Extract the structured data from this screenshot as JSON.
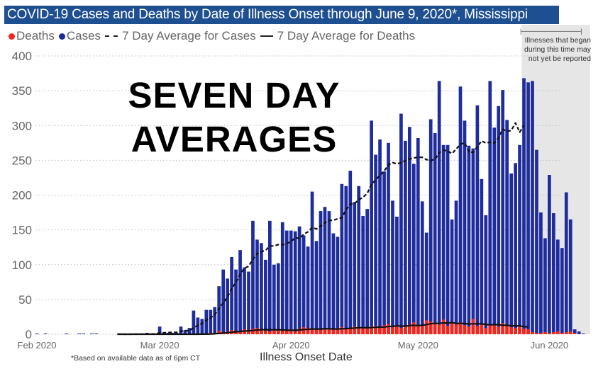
{
  "title": "COVID-19 Cases and Deaths by Date of Illness Onset through June 9, 2020*, Mississippi",
  "legend": [
    {
      "label": "Deaths",
      "marker": "dot",
      "color": "#f2261b"
    },
    {
      "label": "Cases",
      "marker": "dot",
      "color": "#1f2c9c"
    },
    {
      "label": "7 Day Average for Cases",
      "marker": "dashed-line",
      "color": "#222222"
    },
    {
      "label": "7 Day Average for Deaths",
      "marker": "solid-line",
      "color": "#222222"
    }
  ],
  "overlay_text": [
    "SEVEN DAY",
    "AVERAGES"
  ],
  "shade_note": {
    "bracket": "|------------------------------------------|",
    "text": "Illnesses that began during this time may not yet be reported",
    "from_date": "2020-05-26"
  },
  "footnote": "*Based on available data as of 6pm CT",
  "colors": {
    "title_bar": "#1d4f91",
    "cases": "#1f2c9c",
    "deaths": "#f2261b",
    "shade": "#e6e6e6"
  },
  "chart_data": {
    "type": "bar",
    "title": "COVID-19 Cases and Deaths by Date of Illness Onset through June 9, 2020*, Mississippi",
    "xlabel": "Illness Onset Date",
    "ylabel": "",
    "ylim": [
      0,
      400
    ],
    "yticks": [
      0,
      50,
      100,
      150,
      200,
      250,
      300,
      350,
      400
    ],
    "xticks": [
      {
        "date": "2020-02-01",
        "label": "Feb 2020"
      },
      {
        "date": "2020-03-01",
        "label": "Mar 2020"
      },
      {
        "date": "2020-04-01",
        "label": "Apr 2020"
      },
      {
        "date": "2020-05-01",
        "label": "May 2020"
      },
      {
        "date": "2020-06-01",
        "label": "Jun 2020"
      }
    ],
    "grid": true,
    "legend_position": "top-left",
    "date_range": [
      "2020-02-01",
      "2020-06-09"
    ],
    "series": [
      {
        "name": "Cases",
        "kind": "bar",
        "color": "#1f2c9c",
        "values": [
          1,
          0,
          1,
          0,
          0,
          0,
          0,
          1,
          0,
          0,
          1,
          1,
          0,
          1,
          1,
          0,
          0,
          0,
          0,
          0,
          0,
          0,
          0,
          1,
          0,
          0,
          2,
          0,
          0,
          11,
          2,
          2,
          2,
          2,
          11,
          6,
          9,
          34,
          24,
          22,
          35,
          35,
          39,
          69,
          93,
          80,
          111,
          93,
          121,
          96,
          90,
          163,
          136,
          131,
          107,
          163,
          100,
          102,
          161,
          149,
          149,
          148,
          155,
          142,
          126,
          205,
          134,
          177,
          183,
          177,
          145,
          140,
          216,
          213,
          235,
          190,
          213,
          170,
          180,
          307,
          258,
          280,
          234,
          275,
          192,
          169,
          317,
          278,
          298,
          245,
          282,
          191,
          146,
          309,
          289,
          364,
          272,
          272,
          165,
          192,
          356,
          307,
          271,
          267,
          329,
          223,
          171,
          364,
          297,
          328,
          351,
          308,
          231,
          246,
          272,
          368,
          362,
          364,
          265,
          175,
          138,
          229,
          174,
          136,
          124,
          204,
          165,
          7,
          4,
          1
        ]
      },
      {
        "name": "Deaths",
        "kind": "bar",
        "color": "#f2261b",
        "values": [
          0,
          0,
          0,
          0,
          0,
          0,
          0,
          0,
          0,
          0,
          0,
          0,
          0,
          0,
          0,
          0,
          0,
          0,
          0,
          0,
          0,
          0,
          0,
          0,
          0,
          0,
          0,
          0,
          0,
          0,
          0,
          0,
          0,
          0,
          0,
          0,
          0,
          0,
          0,
          1,
          0,
          2,
          1,
          5,
          3,
          4,
          6,
          3,
          5,
          7,
          5,
          8,
          9,
          7,
          5,
          4,
          6,
          6,
          6,
          6,
          7,
          4,
          8,
          10,
          9,
          8,
          7,
          6,
          8,
          7,
          8,
          9,
          10,
          8,
          9,
          11,
          10,
          9,
          8,
          11,
          12,
          10,
          13,
          15,
          10,
          13,
          9,
          12,
          14,
          17,
          12,
          13,
          20,
          18,
          15,
          14,
          21,
          12,
          16,
          14,
          17,
          13,
          11,
          22,
          12,
          15,
          9,
          13,
          14,
          11,
          16,
          12,
          10,
          9,
          11,
          8,
          7,
          3,
          2,
          2,
          3,
          2,
          3,
          4,
          2,
          3,
          4,
          2,
          0,
          0
        ]
      },
      {
        "name": "7 Day Average for Cases",
        "kind": "line",
        "style": "dashed",
        "of": "Cases",
        "window": 7,
        "shown": [
          "2020-02-20",
          "2020-05-26"
        ]
      },
      {
        "name": "7 Day Average for Deaths",
        "kind": "line",
        "style": "solid",
        "of": "Deaths",
        "window": 7,
        "shown": [
          "2020-02-20",
          "2020-05-27"
        ]
      }
    ]
  }
}
